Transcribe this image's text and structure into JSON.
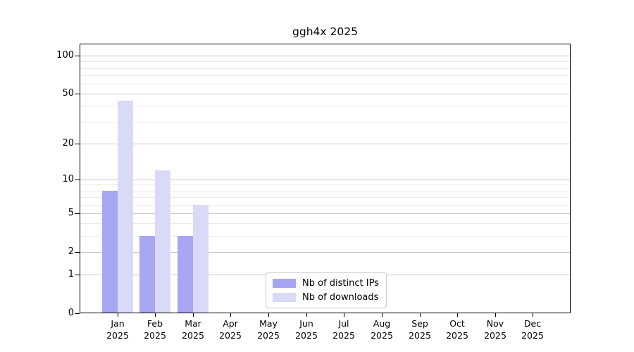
{
  "title": "ggh4x 2025",
  "chart_data": {
    "type": "bar",
    "title": "ggh4x 2025",
    "categories": [
      "Jan 2025",
      "Feb 2025",
      "Mar 2025",
      "Apr 2025",
      "May 2025",
      "Jun 2025",
      "Jul 2025",
      "Aug 2025",
      "Sep 2025",
      "Oct 2025",
      "Nov 2025",
      "Dec 2025"
    ],
    "series": [
      {
        "name": "Nb of distinct IPs",
        "color": "#a6a6f1",
        "values": [
          8,
          3,
          3,
          0,
          0,
          0,
          0,
          0,
          0,
          0,
          0,
          0
        ]
      },
      {
        "name": "Nb of downloads",
        "color": "#d9d9f8",
        "values": [
          44,
          12,
          6,
          0,
          0,
          0,
          0,
          0,
          0,
          0,
          0,
          0
        ]
      }
    ],
    "xlabel": "",
    "ylabel": "",
    "yscale": "log1p",
    "ylim": [
      0,
      125
    ],
    "yticks": [
      0,
      1,
      2,
      5,
      10,
      20,
      50,
      100
    ],
    "minor_yticks": [
      3,
      4,
      6,
      7,
      8,
      9,
      30,
      40,
      60,
      70,
      80,
      90
    ],
    "grid": true,
    "legend_position": "lower center"
  },
  "colors": {
    "series_ips": "#a6a6f1",
    "series_downloads": "#d9d9f8",
    "grid_major": "#c9c9c9",
    "grid_minor": "#ebebeb",
    "spine": "#000000",
    "legend_border": "#cccccc",
    "background": "#ffffff"
  }
}
